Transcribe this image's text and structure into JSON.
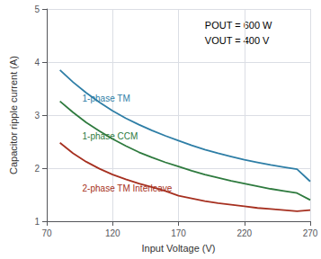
{
  "chart_data": {
    "type": "line",
    "xlabel": "Input Voltage (V)",
    "ylabel": "Capacitor ripple current (A)",
    "xlim": [
      70,
      270
    ],
    "ylim": [
      1,
      5
    ],
    "xticks": [
      70,
      120,
      170,
      220,
      270
    ],
    "yticks": [
      1,
      2,
      3,
      4,
      5
    ],
    "grid": true,
    "x": [
      80,
      90,
      100,
      110,
      120,
      130,
      140,
      150,
      160,
      170,
      180,
      190,
      200,
      210,
      220,
      230,
      240,
      250,
      260,
      270
    ],
    "series": [
      {
        "name": "1-phase TM",
        "color": "#2E7EA6",
        "values": [
          3.85,
          3.62,
          3.42,
          3.24,
          3.08,
          2.94,
          2.82,
          2.71,
          2.61,
          2.52,
          2.43,
          2.35,
          2.28,
          2.22,
          2.16,
          2.11,
          2.06,
          2.02,
          1.98,
          1.75
        ]
      },
      {
        "name": "1-phase CCM",
        "color": "#2E7A3E",
        "values": [
          3.26,
          3.05,
          2.86,
          2.7,
          2.55,
          2.42,
          2.3,
          2.2,
          2.11,
          2.03,
          1.95,
          1.88,
          1.82,
          1.76,
          1.71,
          1.66,
          1.61,
          1.57,
          1.53,
          1.4
        ]
      },
      {
        "name": "2-phase TM Interleave",
        "color": "#A63020",
        "values": [
          2.48,
          2.28,
          2.12,
          1.99,
          1.88,
          1.79,
          1.71,
          1.64,
          1.57,
          1.48,
          1.43,
          1.38,
          1.34,
          1.31,
          1.28,
          1.25,
          1.23,
          1.21,
          1.19,
          1.21
        ]
      }
    ],
    "labels": [
      {
        "text": "1-phase TM",
        "x": 97,
        "y": 3.32,
        "color": "#2E7EA6"
      },
      {
        "text": "1-phase CCM",
        "x": 97,
        "y": 2.6,
        "color": "#2E7A3E"
      },
      {
        "text": "2-phase TM Interleave",
        "x": 97,
        "y": 1.62,
        "color": "#A63020"
      }
    ],
    "annotations": [
      "POUT = 600 W",
      "VOUT = 400 V"
    ]
  }
}
